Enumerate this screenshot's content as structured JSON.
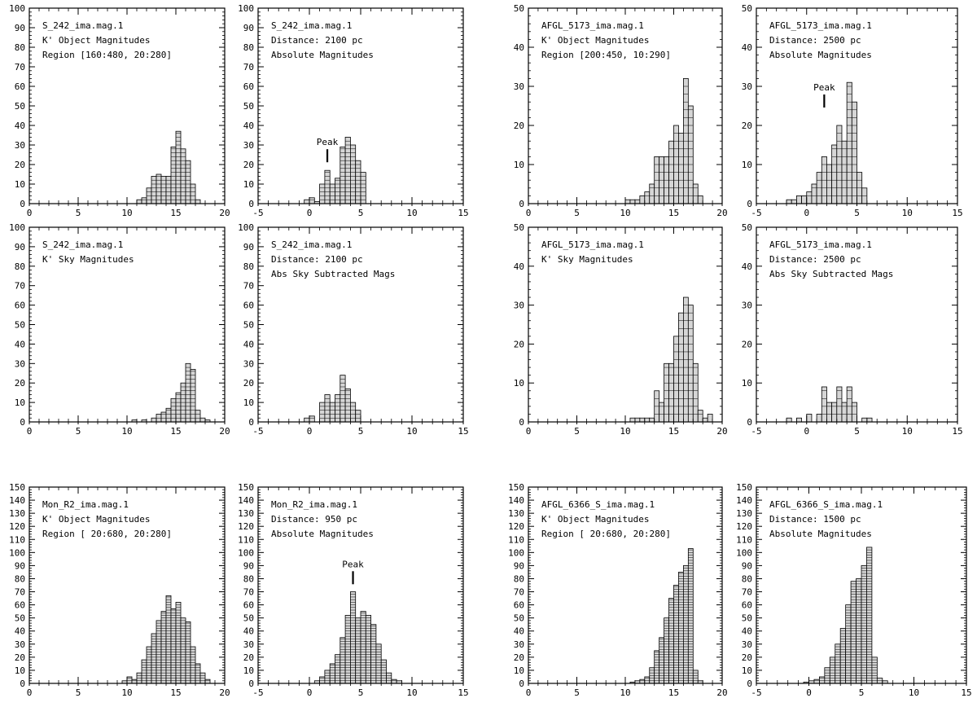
{
  "chart_data": [
    {
      "type": "bar",
      "annotations": [
        "S_242_ima.mag.1",
        "K' Object Magnitudes",
        "Region [160:480, 20:280]"
      ],
      "xlim": [
        0,
        20
      ],
      "ylim": [
        0,
        100
      ],
      "xticks": [
        0,
        5,
        10,
        15,
        20
      ],
      "yticks": [
        0,
        10,
        20,
        30,
        40,
        50,
        60,
        70,
        80,
        90,
        100
      ],
      "bin_width": 0.5,
      "bins": [
        [
          11,
          2
        ],
        [
          11.5,
          3
        ],
        [
          12,
          8
        ],
        [
          12.5,
          14
        ],
        [
          13,
          15
        ],
        [
          13.5,
          14
        ],
        [
          14,
          14
        ],
        [
          14.5,
          29
        ],
        [
          15,
          37
        ],
        [
          15.5,
          28
        ],
        [
          16,
          22
        ],
        [
          16.5,
          10
        ],
        [
          17,
          2
        ]
      ]
    },
    {
      "type": "bar",
      "annotations": [
        "S_242_ima.mag.1",
        "Distance: 2100   pc",
        "Absolute Magnitudes"
      ],
      "xlim": [
        -5,
        15
      ],
      "ylim": [
        0,
        100
      ],
      "xticks": [
        -5,
        0,
        5,
        10,
        15
      ],
      "yticks": [
        0,
        10,
        20,
        30,
        40,
        50,
        60,
        70,
        80,
        90,
        100
      ],
      "bin_width": 0.5,
      "bins": [
        [
          -0.5,
          2
        ],
        [
          0,
          3
        ],
        [
          0.5,
          1
        ],
        [
          1,
          10
        ],
        [
          1.5,
          17
        ],
        [
          2,
          10
        ],
        [
          2.5,
          13
        ],
        [
          3,
          29
        ],
        [
          3.5,
          34
        ],
        [
          4,
          30
        ],
        [
          4.5,
          22
        ],
        [
          5,
          16
        ]
      ],
      "peak": {
        "label": "Peak",
        "x": 1.75,
        "y": 22
      }
    },
    {
      "type": "bar",
      "annotations": [
        "AFGL_5173_ima.mag.1",
        "K' Object Magnitudes",
        "Region [200:450, 10:290]"
      ],
      "xlim": [
        0,
        20
      ],
      "ylim": [
        0,
        50
      ],
      "xticks": [
        0,
        5,
        10,
        15,
        20
      ],
      "yticks": [
        0,
        10,
        20,
        30,
        40,
        50
      ],
      "bin_width": 0.5,
      "bins": [
        [
          10,
          1
        ],
        [
          10.5,
          1
        ],
        [
          11,
          1
        ],
        [
          11.5,
          2
        ],
        [
          12,
          3
        ],
        [
          12.5,
          5
        ],
        [
          13,
          12
        ],
        [
          13.5,
          12
        ],
        [
          14,
          12
        ],
        [
          14.5,
          16
        ],
        [
          15,
          20
        ],
        [
          15.5,
          18
        ],
        [
          16,
          32
        ],
        [
          16.5,
          25
        ],
        [
          17,
          5
        ],
        [
          17.5,
          2
        ]
      ]
    },
    {
      "type": "bar",
      "annotations": [
        "AFGL_5173_ima.mag.1",
        "Distance: 2500   pc",
        "Absolute Magnitudes"
      ],
      "xlim": [
        -5,
        15
      ],
      "ylim": [
        0,
        50
      ],
      "xticks": [
        -5,
        0,
        5,
        10,
        15
      ],
      "yticks": [
        0,
        10,
        20,
        30,
        40,
        50
      ],
      "bin_width": 0.5,
      "bins": [
        [
          -2,
          1
        ],
        [
          -1.5,
          1
        ],
        [
          -1,
          2
        ],
        [
          -0.5,
          2
        ],
        [
          0,
          3
        ],
        [
          0.5,
          5
        ],
        [
          1,
          8
        ],
        [
          1.5,
          12
        ],
        [
          2,
          10
        ],
        [
          2.5,
          15
        ],
        [
          3,
          20
        ],
        [
          3.5,
          16
        ],
        [
          4,
          31
        ],
        [
          4.5,
          26
        ],
        [
          5,
          8
        ],
        [
          5.5,
          4
        ]
      ],
      "peak": {
        "label": "Peak",
        "x": 1.75,
        "y": 25
      }
    },
    {
      "type": "bar",
      "annotations": [
        "S_242_ima.mag.1",
        "K' Sky Magnitudes"
      ],
      "xlim": [
        0,
        20
      ],
      "ylim": [
        0,
        100
      ],
      "xticks": [
        0,
        5,
        10,
        15,
        20
      ],
      "yticks": [
        0,
        10,
        20,
        30,
        40,
        50,
        60,
        70,
        80,
        90,
        100
      ],
      "bin_width": 0.5,
      "bins": [
        [
          10.5,
          1
        ],
        [
          11.5,
          1
        ],
        [
          12.5,
          2
        ],
        [
          13,
          4
        ],
        [
          13.5,
          5
        ],
        [
          14,
          7
        ],
        [
          14.5,
          12
        ],
        [
          15,
          15
        ],
        [
          15.5,
          20
        ],
        [
          16,
          30
        ],
        [
          16.5,
          27
        ],
        [
          17,
          6
        ],
        [
          17.5,
          2
        ],
        [
          18,
          1
        ]
      ]
    },
    {
      "type": "bar",
      "annotations": [
        "S_242_ima.mag.1",
        "Distance: 2100   pc",
        "Abs Sky Subtracted Mags"
      ],
      "xlim": [
        -5,
        15
      ],
      "ylim": [
        0,
        100
      ],
      "xticks": [
        -5,
        0,
        5,
        10,
        15
      ],
      "yticks": [
        0,
        10,
        20,
        30,
        40,
        50,
        60,
        70,
        80,
        90,
        100
      ],
      "bin_width": 0.5,
      "bins": [
        [
          -0.5,
          2
        ],
        [
          0,
          3
        ],
        [
          1,
          10
        ],
        [
          1.5,
          14
        ],
        [
          2,
          10
        ],
        [
          2.5,
          14
        ],
        [
          3,
          24
        ],
        [
          3.5,
          17
        ],
        [
          4,
          10
        ],
        [
          4.5,
          6
        ]
      ]
    },
    {
      "type": "bar",
      "annotations": [
        "AFGL_5173_ima.mag.1",
        "K' Sky Magnitudes"
      ],
      "xlim": [
        0,
        20
      ],
      "ylim": [
        0,
        50
      ],
      "xticks": [
        0,
        5,
        10,
        15,
        20
      ],
      "yticks": [
        0,
        10,
        20,
        30,
        40,
        50
      ],
      "bin_width": 0.5,
      "bins": [
        [
          10.5,
          1
        ],
        [
          11,
          1
        ],
        [
          11.5,
          1
        ],
        [
          12,
          1
        ],
        [
          12.5,
          1
        ],
        [
          13,
          8
        ],
        [
          13.5,
          5
        ],
        [
          14,
          15
        ],
        [
          14.5,
          15
        ],
        [
          15,
          22
        ],
        [
          15.5,
          28
        ],
        [
          16,
          32
        ],
        [
          16.5,
          30
        ],
        [
          17,
          15
        ],
        [
          17.5,
          3
        ],
        [
          18,
          1
        ],
        [
          18.5,
          2
        ]
      ]
    },
    {
      "type": "bar",
      "annotations": [
        "AFGL_5173_ima.mag.1",
        "Distance: 2500   pc",
        "Abs Sky Subtracted Mags"
      ],
      "xlim": [
        -5,
        15
      ],
      "ylim": [
        0,
        50
      ],
      "xticks": [
        -5,
        0,
        5,
        10,
        15
      ],
      "yticks": [
        0,
        10,
        20,
        30,
        40,
        50
      ],
      "bin_width": 0.5,
      "bins": [
        [
          -2,
          1
        ],
        [
          -1,
          1
        ],
        [
          0,
          2
        ],
        [
          1,
          2
        ],
        [
          1.5,
          9
        ],
        [
          2,
          5
        ],
        [
          2.5,
          5
        ],
        [
          3,
          9
        ],
        [
          3.5,
          5
        ],
        [
          4,
          9
        ],
        [
          4.5,
          5
        ],
        [
          5.5,
          1
        ],
        [
          6,
          1
        ]
      ]
    },
    {
      "type": "bar",
      "annotations": [
        "Mon_R2_ima.mag.1",
        "K' Object Magnitudes",
        "Region [ 20:680, 20:280]"
      ],
      "xlim": [
        0,
        20
      ],
      "ylim": [
        0,
        150
      ],
      "xticks": [
        0,
        5,
        10,
        15,
        20
      ],
      "yticks": [
        0,
        10,
        20,
        30,
        40,
        50,
        60,
        70,
        80,
        90,
        100,
        110,
        120,
        130,
        140,
        150
      ],
      "bin_width": 0.5,
      "bins": [
        [
          9.5,
          2
        ],
        [
          10,
          5
        ],
        [
          10.5,
          3
        ],
        [
          11,
          8
        ],
        [
          11.5,
          18
        ],
        [
          12,
          28
        ],
        [
          12.5,
          38
        ],
        [
          13,
          48
        ],
        [
          13.5,
          55
        ],
        [
          14,
          67
        ],
        [
          14.5,
          57
        ],
        [
          15,
          62
        ],
        [
          15.5,
          50
        ],
        [
          16,
          47
        ],
        [
          16.5,
          28
        ],
        [
          17,
          15
        ],
        [
          17.5,
          8
        ],
        [
          18,
          3
        ]
      ]
    },
    {
      "type": "bar",
      "annotations": [
        "Mon_R2_ima.mag.1",
        "Distance: 950   pc",
        "Absolute Magnitudes"
      ],
      "xlim": [
        -5,
        15
      ],
      "ylim": [
        0,
        150
      ],
      "xticks": [
        -5,
        0,
        5,
        10,
        15
      ],
      "yticks": [
        0,
        10,
        20,
        30,
        40,
        50,
        60,
        70,
        80,
        90,
        100,
        110,
        120,
        130,
        140,
        150
      ],
      "bin_width": 0.5,
      "bins": [
        [
          0.5,
          2
        ],
        [
          1,
          5
        ],
        [
          1.5,
          10
        ],
        [
          2,
          15
        ],
        [
          2.5,
          22
        ],
        [
          3,
          35
        ],
        [
          3.5,
          52
        ],
        [
          4,
          70
        ],
        [
          4.5,
          50
        ],
        [
          5,
          55
        ],
        [
          5.5,
          52
        ],
        [
          6,
          45
        ],
        [
          6.5,
          30
        ],
        [
          7,
          18
        ],
        [
          7.5,
          8
        ],
        [
          8,
          3
        ],
        [
          8.5,
          2
        ]
      ],
      "peak": {
        "label": "Peak",
        "x": 4.25,
        "y": 77
      }
    },
    {
      "type": "bar",
      "annotations": [
        "AFGL_6366_S_ima.mag.1",
        "K' Object Magnitudes",
        "Region [ 20:680, 20:280]"
      ],
      "xlim": [
        0,
        20
      ],
      "ylim": [
        0,
        150
      ],
      "xticks": [
        0,
        5,
        10,
        15,
        20
      ],
      "yticks": [
        0,
        10,
        20,
        30,
        40,
        50,
        60,
        70,
        80,
        90,
        100,
        110,
        120,
        130,
        140,
        150
      ],
      "bin_width": 0.5,
      "bins": [
        [
          10.5,
          1
        ],
        [
          11,
          2
        ],
        [
          11.5,
          3
        ],
        [
          12,
          5
        ],
        [
          12.5,
          12
        ],
        [
          13,
          25
        ],
        [
          13.5,
          35
        ],
        [
          14,
          50
        ],
        [
          14.5,
          65
        ],
        [
          15,
          75
        ],
        [
          15.5,
          85
        ],
        [
          16,
          90
        ],
        [
          16.5,
          103
        ],
        [
          17,
          10
        ],
        [
          17.5,
          2
        ]
      ]
    },
    {
      "type": "bar",
      "annotations": [
        "AFGL_6366_S_ima.mag.1",
        "Distance: 1500   pc",
        "Absolute Magnitudes"
      ],
      "xlim": [
        -5,
        15
      ],
      "ylim": [
        0,
        150
      ],
      "xticks": [
        -5,
        0,
        5,
        10,
        15
      ],
      "yticks": [
        0,
        10,
        20,
        30,
        40,
        50,
        60,
        70,
        80,
        90,
        100,
        110,
        120,
        130,
        140,
        150
      ],
      "bin_width": 0.5,
      "bins": [
        [
          -0.5,
          1
        ],
        [
          0,
          2
        ],
        [
          0.5,
          3
        ],
        [
          1,
          5
        ],
        [
          1.5,
          12
        ],
        [
          2,
          20
        ],
        [
          2.5,
          30
        ],
        [
          3,
          42
        ],
        [
          3.5,
          60
        ],
        [
          4,
          78
        ],
        [
          4.5,
          80
        ],
        [
          5,
          90
        ],
        [
          5.5,
          104
        ],
        [
          6,
          20
        ],
        [
          6.5,
          4
        ],
        [
          7,
          2
        ]
      ]
    }
  ]
}
